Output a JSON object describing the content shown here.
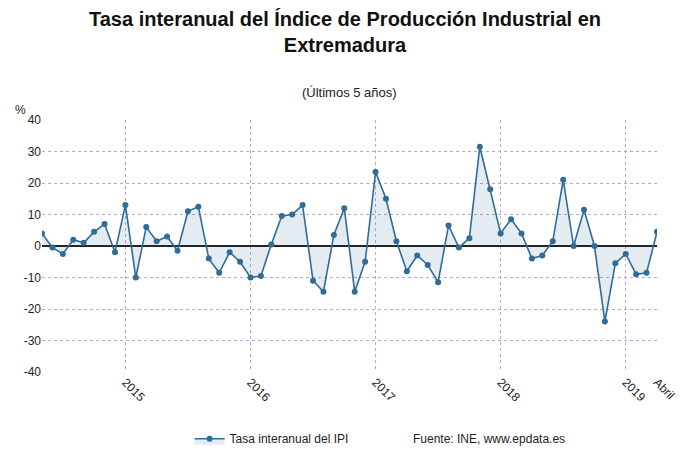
{
  "chart_data": {
    "type": "line",
    "title": "Tasa interanual del Índice de Producción Industrial en Extremadura",
    "subtitle": "(Últimos 5 años)",
    "ylabel": "%",
    "categories": [
      null,
      null,
      null,
      null,
      null,
      null,
      null,
      null,
      "2015",
      null,
      null,
      null,
      null,
      null,
      null,
      null,
      null,
      null,
      null,
      null,
      "2016",
      null,
      null,
      null,
      null,
      null,
      null,
      null,
      null,
      null,
      null,
      null,
      "2017",
      null,
      null,
      null,
      null,
      null,
      null,
      null,
      null,
      null,
      null,
      null,
      "2018",
      null,
      null,
      null,
      null,
      null,
      null,
      null,
      null,
      null,
      null,
      null,
      "2019",
      null,
      null,
      "Abril"
    ],
    "series": [
      {
        "name": "Tasa interanual del IPI",
        "color": "#2f6c97",
        "marker": "circle",
        "values": [
          4,
          -0.5,
          -2.5,
          2,
          1,
          4.5,
          7,
          -2,
          13,
          -10,
          6,
          1.5,
          3,
          -1.5,
          11,
          12.5,
          -4,
          -8.5,
          -2,
          -5,
          -10,
          -9.5,
          0.5,
          9.5,
          10,
          13,
          -11,
          -14.5,
          3.5,
          12,
          -14.5,
          -5,
          23.5,
          15,
          1.5,
          -8,
          -3,
          -6,
          -11.5,
          6.5,
          -0.5,
          2.5,
          31.5,
          18,
          4,
          8.5,
          4,
          -4,
          -3,
          1.5,
          21,
          0,
          11.5,
          0,
          -24,
          -5.5,
          -2.5,
          -9,
          -8.5,
          4.5
        ]
      }
    ],
    "ylim": [
      -40,
      40
    ],
    "yticks": [
      -40,
      -30,
      -20,
      -10,
      0,
      10,
      20,
      30,
      40
    ],
    "grid": true,
    "legend": "bottom",
    "annotations": [
      {
        "text": "Fuente: INE, www.epdata.es"
      }
    ]
  }
}
